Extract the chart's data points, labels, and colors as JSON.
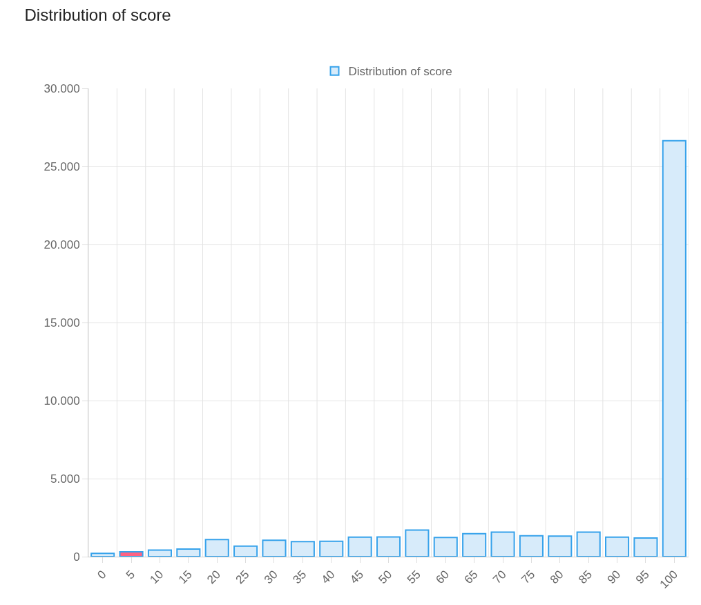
{
  "chart_data": {
    "type": "bar",
    "title": "Distribution of score",
    "categories": [
      "0",
      "5",
      "10",
      "15",
      "20",
      "25",
      "30",
      "35",
      "40",
      "45",
      "50",
      "55",
      "60",
      "65",
      "70",
      "75",
      "80",
      "85",
      "90",
      "95",
      "100"
    ],
    "series": [
      {
        "name": "Distribution of score",
        "color": "#36a2eb",
        "colors": [
          "#d7ebfa",
          "#ff6384",
          "#d7ebfa",
          "#d7ebfa",
          "#d7ebfa",
          "#d7ebfa",
          "#d7ebfa",
          "#d7ebfa",
          "#d7ebfa",
          "#d7ebfa",
          "#d7ebfa",
          "#d7ebfa",
          "#d7ebfa",
          "#d7ebfa",
          "#d7ebfa",
          "#d7ebfa",
          "#d7ebfa",
          "#d7ebfa",
          "#d7ebfa",
          "#d7ebfa",
          "#d7ebfa"
        ],
        "values": [
          210,
          310,
          415,
          490,
          1100,
          680,
          1050,
          960,
          990,
          1250,
          1260,
          1700,
          1230,
          1470,
          1570,
          1340,
          1320,
          1570,
          1250,
          1200,
          26650
        ]
      }
    ],
    "ylim": [
      0,
      30000
    ],
    "yticks": [
      {
        "value": 0,
        "label": "0"
      },
      {
        "value": 5000,
        "label": "5.000"
      },
      {
        "value": 10000,
        "label": "10.000"
      },
      {
        "value": 15000,
        "label": "15.000"
      },
      {
        "value": 20000,
        "label": "20.000"
      },
      {
        "value": 25000,
        "label": "25.000"
      },
      {
        "value": 30000,
        "label": "30.000"
      }
    ],
    "grid": true,
    "legend": "top"
  }
}
